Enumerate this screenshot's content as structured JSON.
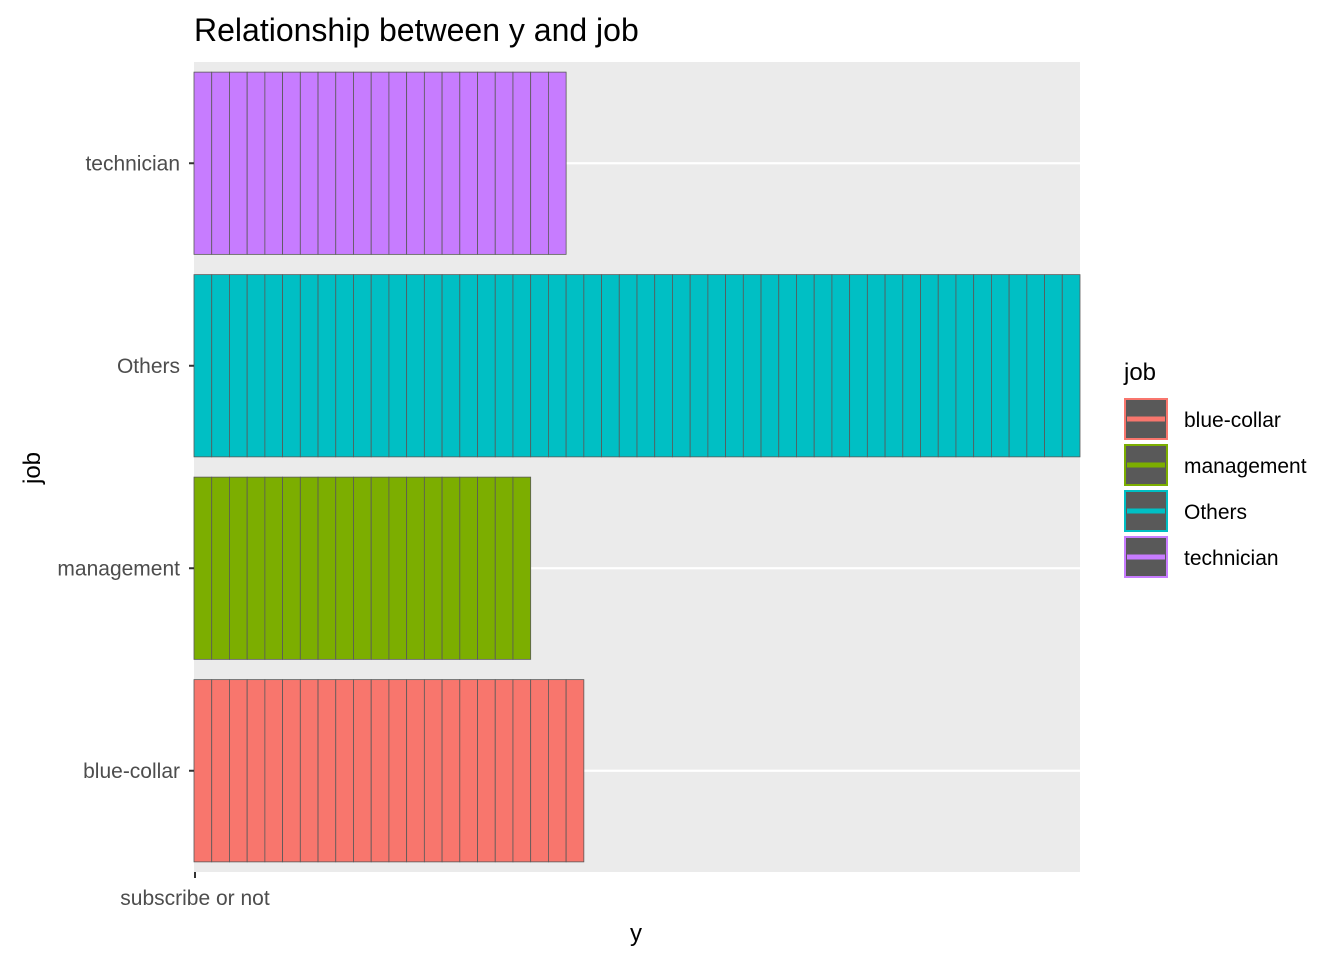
{
  "chart_data": {
    "type": "bar",
    "orientation": "horizontal",
    "title": "Relationship between y and job",
    "xlabel": "y",
    "ylabel": "job",
    "x_tick_labels": [
      "subscribe or not"
    ],
    "categories": [
      "blue-collar",
      "management",
      "Others",
      "technician"
    ],
    "values": [
      22,
      19,
      50,
      21
    ],
    "xlim": [
      0,
      50
    ],
    "grid": true,
    "legend": {
      "title": "job",
      "position": "right",
      "entries": [
        "blue-collar",
        "management",
        "Others",
        "technician"
      ]
    },
    "colors": {
      "blue-collar": "#F8766D",
      "management": "#7CAE00",
      "Others": "#00BFC4",
      "technician": "#C77CFF"
    },
    "segment_outline_color": "#595959",
    "panel_background": "#EBEBEB",
    "gridline_color": "#FFFFFF"
  }
}
